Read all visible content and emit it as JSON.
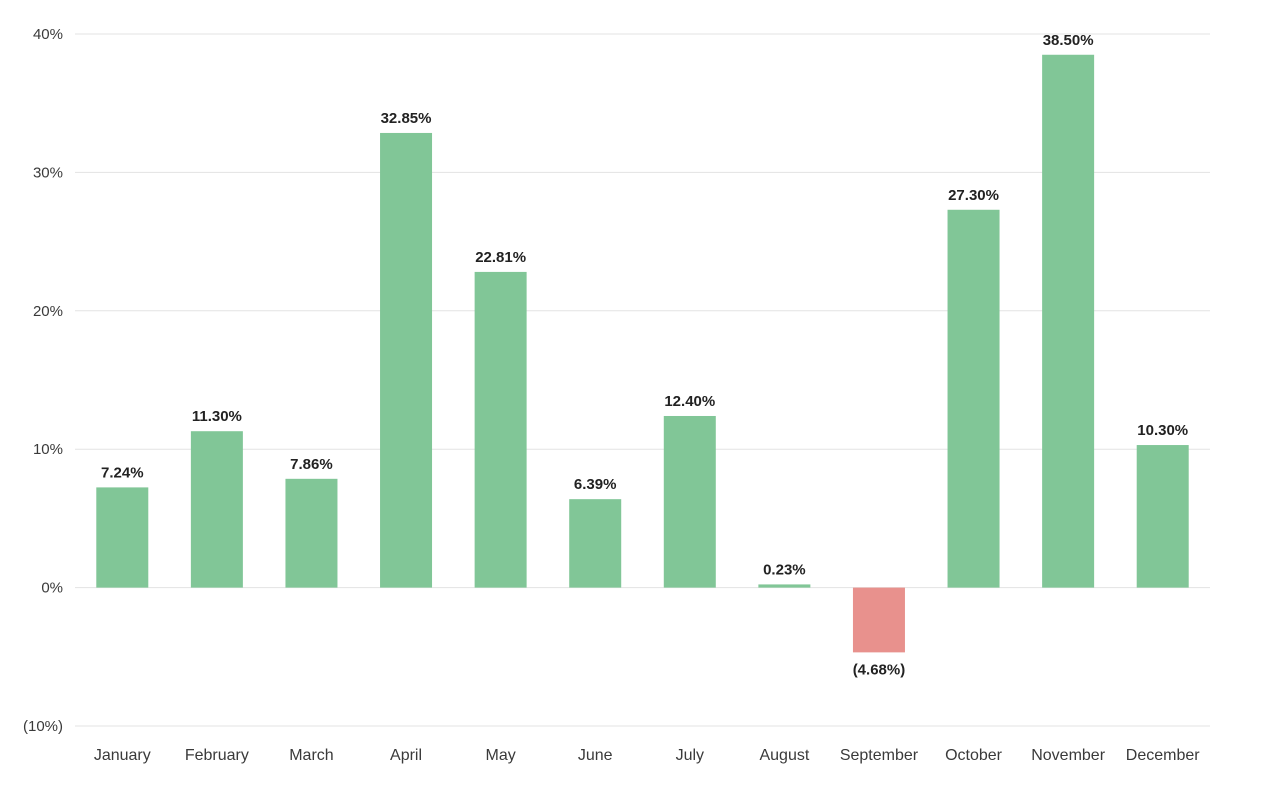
{
  "chart_data": {
    "type": "bar",
    "categories": [
      "January",
      "February",
      "March",
      "April",
      "May",
      "June",
      "July",
      "August",
      "September",
      "October",
      "November",
      "December"
    ],
    "values": [
      7.24,
      11.3,
      7.86,
      32.85,
      22.81,
      6.39,
      12.4,
      0.23,
      -4.68,
      27.3,
      38.5,
      10.3
    ],
    "data_labels": [
      "7.24%",
      "11.30%",
      "7.86%",
      "32.85%",
      "22.81%",
      "6.39%",
      "12.40%",
      "0.23%",
      "(4.68%)",
      "27.30%",
      "38.50%",
      "10.30%"
    ],
    "ylim": [
      -10,
      40
    ],
    "y_ticks": [
      40,
      30,
      20,
      10,
      0,
      -10
    ],
    "y_tick_labels": [
      "40%",
      "30%",
      "20%",
      "10%",
      "0%",
      "(10%)"
    ],
    "title": "",
    "xlabel": "",
    "ylabel": "",
    "grid": true,
    "legend": "none",
    "colors": {
      "positive": "#81c697",
      "negative": "#e8918d",
      "grid": "#e3e3e3",
      "text": "#3a3a3a",
      "label": "#222222"
    }
  }
}
